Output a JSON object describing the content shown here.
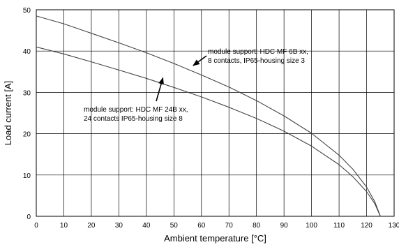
{
  "chart_data": {
    "type": "line",
    "xlabel": "Ambient temperature [°C]",
    "ylabel": "Load current [A]",
    "xlim": [
      0,
      130
    ],
    "ylim": [
      0,
      50
    ],
    "xticks": [
      0,
      10,
      20,
      30,
      40,
      50,
      60,
      70,
      80,
      90,
      100,
      110,
      120,
      130
    ],
    "yticks": [
      0,
      10,
      20,
      30,
      40,
      50
    ],
    "grid": true,
    "series": [
      {
        "name": "module support: HDC MF 6B xx, 8 contacts, IP65-housing size 3",
        "x": [
          0,
          10,
          20,
          30,
          40,
          50,
          60,
          70,
          80,
          90,
          100,
          110,
          115,
          120,
          123,
          125
        ],
        "y": [
          48.5,
          46.6,
          44.3,
          42.0,
          39.6,
          37.0,
          34.2,
          31.3,
          28.0,
          24.3,
          20.1,
          14.8,
          11.4,
          7.1,
          3.5,
          0
        ]
      },
      {
        "name": "module support: HDC MF 24B xx, 24 contacts IP65-housing size 8",
        "x": [
          0,
          10,
          20,
          30,
          40,
          50,
          60,
          70,
          80,
          90,
          100,
          110,
          115,
          120,
          123,
          125
        ],
        "y": [
          41.0,
          39.3,
          37.4,
          35.4,
          33.4,
          31.2,
          28.9,
          26.4,
          23.7,
          20.6,
          17.0,
          12.5,
          9.6,
          6.0,
          3.0,
          0
        ]
      }
    ],
    "annotations": [
      {
        "lines": [
          "module support: HDC MF 6B xx,",
          "8 contacts, IP65-housing size 3"
        ],
        "arrow_to": [
          57,
          36.5
        ]
      },
      {
        "lines": [
          "module support: HDC MF 24B xx,",
          "24 contacts IP65-housing size 8"
        ],
        "arrow_to": [
          46,
          33.5
        ]
      }
    ]
  }
}
